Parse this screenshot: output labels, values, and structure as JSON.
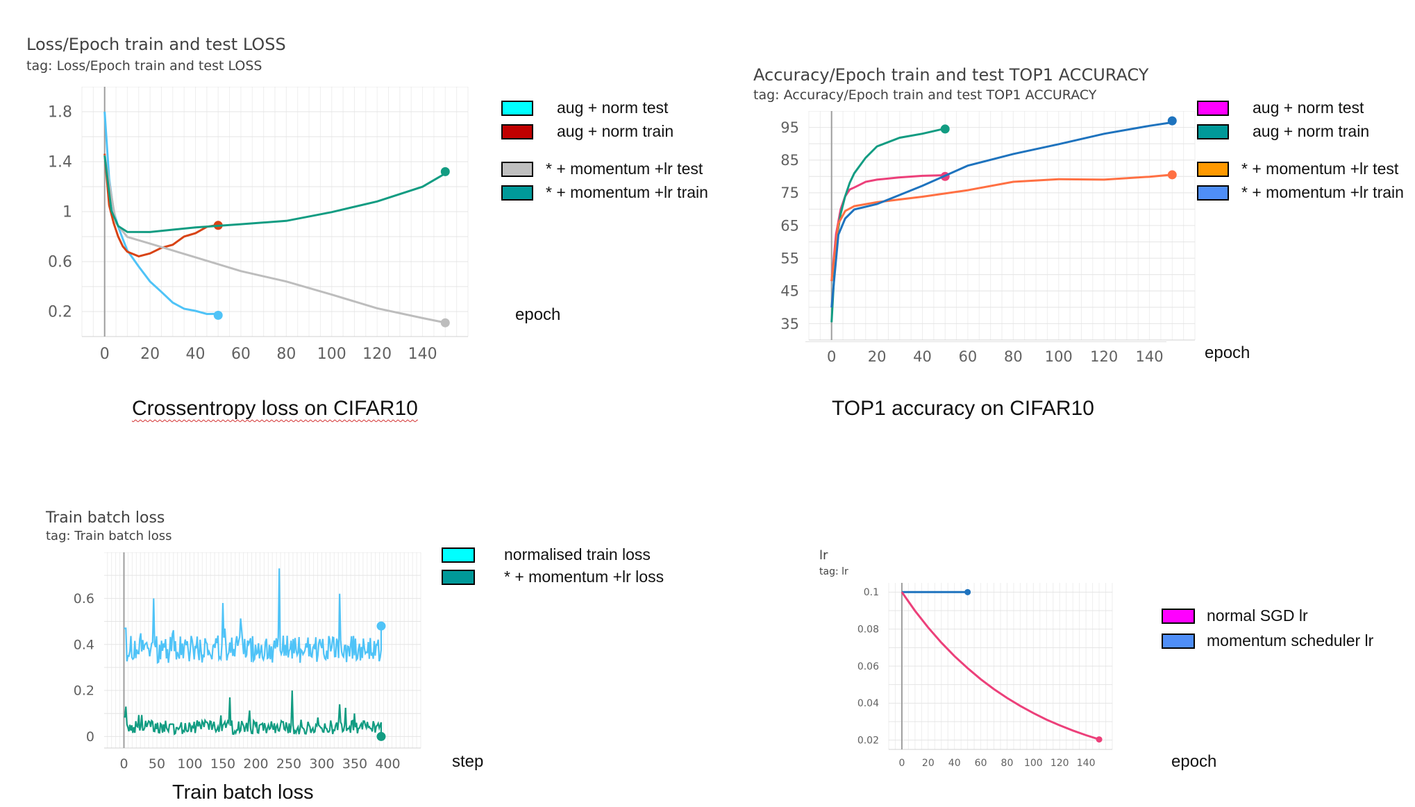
{
  "chart_data": [
    {
      "type": "line",
      "title": "Loss/Epoch train and test LOSS",
      "subtitle": "tag: Loss/Epoch train and test LOSS",
      "xlabel": "epoch",
      "ylabel": "",
      "caption": "Crossentropy loss on CIFAR10",
      "xlim": [
        -10,
        160
      ],
      "ylim": [
        0.0,
        2.0
      ],
      "xticks": [
        "0",
        "20",
        "40",
        "60",
        "80",
        "100",
        "120",
        "140"
      ],
      "yticks": [
        "1.8",
        "1.4",
        "1",
        "0.6",
        "0.2"
      ],
      "legend": [
        "aug + norm test",
        "aug + norm train",
        "* + momentum +lr test",
        "* + momentum +lr train"
      ],
      "legend_colors": [
        "#00ffff",
        "#c00000",
        "#bfbfbf",
        "#009999"
      ],
      "series": [
        {
          "color": "#4fc3f7",
          "x": [
            0,
            2,
            4,
            6,
            8,
            10,
            15,
            20,
            25,
            30,
            35,
            40,
            45,
            50
          ],
          "y": [
            1.8,
            1.25,
            1.0,
            0.88,
            0.78,
            0.7,
            0.55,
            0.44,
            0.35,
            0.28,
            0.23,
            0.2,
            0.18,
            0.17
          ]
        },
        {
          "color": "#d84315",
          "x": [
            0,
            2,
            4,
            6,
            8,
            10,
            15,
            20,
            25,
            30,
            35,
            40,
            45,
            50
          ],
          "y": [
            1.45,
            1.05,
            0.92,
            0.8,
            0.72,
            0.68,
            0.65,
            0.66,
            0.7,
            0.74,
            0.8,
            0.84,
            0.87,
            0.89
          ]
        },
        {
          "color": "#bdbdbd",
          "x": [
            0,
            5,
            10,
            20,
            40,
            60,
            80,
            100,
            120,
            140,
            150
          ],
          "y": [
            1.45,
            0.9,
            0.8,
            0.74,
            0.64,
            0.53,
            0.43,
            0.33,
            0.24,
            0.15,
            0.11
          ]
        },
        {
          "color": "#129c82",
          "x": [
            0,
            3,
            6,
            10,
            20,
            40,
            60,
            80,
            100,
            120,
            140,
            150
          ],
          "y": [
            1.45,
            1.0,
            0.88,
            0.84,
            0.85,
            0.87,
            0.89,
            0.93,
            1.0,
            1.08,
            1.2,
            1.32
          ]
        }
      ]
    },
    {
      "type": "line",
      "title": "Accuracy/Epoch train and test TOP1 ACCURACY",
      "subtitle": "tag: Accuracy/Epoch train and test TOP1 ACCURACY",
      "xlabel": "epoch",
      "ylabel": "",
      "caption": "TOP1 accuracy on CIFAR10",
      "xlim": [
        -10,
        160
      ],
      "ylim": [
        30,
        100
      ],
      "xticks": [
        "0",
        "20",
        "40",
        "60",
        "80",
        "100",
        "120",
        "140"
      ],
      "yticks": [
        "95",
        "85",
        "75",
        "65",
        "55",
        "45",
        "35"
      ],
      "legend": [
        "aug + norm test",
        "aug + norm train",
        "* + momentum +lr test",
        "* + momentum +lr train"
      ],
      "legend_colors": [
        "#ff00ff",
        "#009999",
        "#ff9900",
        "#4f8ef7"
      ],
      "series": [
        {
          "color": "#ec407a",
          "x": [
            0,
            2,
            4,
            6,
            8,
            10,
            15,
            20,
            30,
            40,
            50
          ],
          "y": [
            48,
            62,
            70,
            74,
            76,
            77,
            78,
            79,
            80,
            80,
            80
          ]
        },
        {
          "color": "#129c82",
          "x": [
            0,
            2,
            4,
            6,
            8,
            10,
            15,
            20,
            30,
            40,
            50
          ],
          "y": [
            35,
            60,
            69,
            74,
            78,
            81,
            86,
            89,
            92,
            93.5,
            94.5
          ]
        },
        {
          "color": "#ff7043",
          "x": [
            0,
            3,
            6,
            10,
            20,
            40,
            60,
            80,
            100,
            120,
            140,
            150
          ],
          "y": [
            48,
            66,
            69,
            71,
            72,
            74,
            76,
            78,
            79,
            79.5,
            80,
            80.5
          ]
        },
        {
          "color": "#1e73be",
          "x": [
            0,
            3,
            6,
            10,
            20,
            40,
            60,
            80,
            100,
            120,
            140,
            150
          ],
          "y": [
            40,
            62,
            67,
            70,
            72,
            77,
            83,
            87,
            90,
            93,
            95.5,
            97
          ]
        }
      ]
    },
    {
      "type": "line",
      "title": "Train batch loss",
      "subtitle": "tag: Train batch loss",
      "xlabel": "step",
      "ylabel": "",
      "caption": "Train batch loss",
      "xlim": [
        -30,
        450
      ],
      "ylim": [
        -0.05,
        0.8
      ],
      "xticks": [
        "0",
        "50",
        "100",
        "150",
        "200",
        "250",
        "300",
        "350",
        "400"
      ],
      "yticks": [
        "0.6",
        "0.4",
        "0.2",
        "0"
      ],
      "legend": [
        "normalised train loss",
        "* + momentum +lr loss"
      ],
      "legend_colors": [
        "#00ffff",
        "#009999"
      ],
      "series": [
        {
          "color": "#4fc3f7",
          "x_start": 0,
          "x_end": 390,
          "base": 0.38,
          "noise": 0.06,
          "spikes": [
            [
              45,
              0.6
            ],
            [
              150,
              0.58
            ],
            [
              236,
              0.73
            ],
            [
              327,
              0.62
            ]
          ],
          "end": 0.48
        },
        {
          "color": "#129c82",
          "x_start": 0,
          "x_end": 390,
          "base": 0.04,
          "noise": 0.03,
          "spikes": [
            [
              3,
              0.13
            ],
            [
              160,
              0.17
            ],
            [
              255,
              0.2
            ],
            [
              327,
              0.14
            ],
            [
              350,
              0.1
            ]
          ],
          "end": 0.0
        }
      ]
    },
    {
      "type": "line",
      "title": "lr",
      "subtitle": "tag: lr",
      "xlabel": "epoch",
      "ylabel": "",
      "caption": "",
      "xlim": [
        -10,
        160
      ],
      "ylim": [
        0.015,
        0.105
      ],
      "xticks": [
        "0",
        "20",
        "40",
        "60",
        "80",
        "100",
        "120",
        "140"
      ],
      "yticks": [
        "0.1",
        "0.08",
        "0.06",
        "0.04",
        "0.02"
      ],
      "legend": [
        "normal SGD lr",
        "momentum scheduler lr"
      ],
      "legend_colors": [
        "#ff00ff",
        "#4f8ef7"
      ],
      "series": [
        {
          "color": "#1e73be",
          "x": [
            0,
            50
          ],
          "y": [
            0.1,
            0.1
          ]
        },
        {
          "color": "#ec407a",
          "x": [
            0,
            10,
            20,
            30,
            40,
            50,
            60,
            70,
            80,
            90,
            100,
            110,
            120,
            130,
            140,
            150
          ],
          "y": [
            0.1,
            0.0899,
            0.0809,
            0.0727,
            0.0654,
            0.0589,
            0.0529,
            0.0476,
            0.0428,
            0.0385,
            0.0346,
            0.0311,
            0.028,
            0.0252,
            0.0227,
            0.0204
          ]
        }
      ]
    }
  ]
}
